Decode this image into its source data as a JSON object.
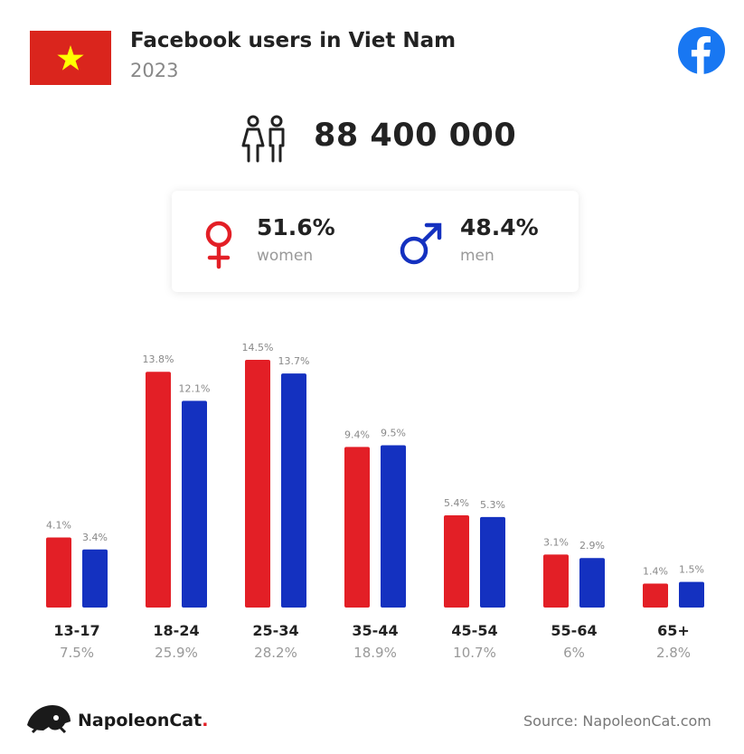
{
  "header": {
    "title": "Facebook users in Viet Nam",
    "year": "2023",
    "flag_colors": {
      "field": "#da251d",
      "star": "#ffff00"
    },
    "brand_icon": "facebook-icon",
    "brand_color": "#1877f2"
  },
  "summary": {
    "total_users": "88 400 000",
    "icon": "people-icon",
    "women": {
      "percent": "51.6%",
      "label": "women",
      "icon": "female-symbol-icon",
      "color": "#e31f26"
    },
    "men": {
      "percent": "48.4%",
      "label": "men",
      "icon": "male-symbol-icon",
      "color": "#1431c0"
    }
  },
  "chart_data": {
    "type": "bar",
    "categories": [
      "13-17",
      "18-24",
      "25-34",
      "35-44",
      "45-54",
      "55-64",
      "65+"
    ],
    "group_share_labels": [
      "7.5%",
      "25.9%",
      "28.2%",
      "18.9%",
      "10.7%",
      "6%",
      "2.8%"
    ],
    "series": [
      {
        "color": "#e31f26",
        "values": [
          4.1,
          13.8,
          14.5,
          9.4,
          5.4,
          3.1,
          1.4
        ],
        "labels": [
          "4.1%",
          "13.8%",
          "14.5%",
          "9.4%",
          "5.4%",
          "3.1%",
          "1.4%"
        ]
      },
      {
        "color": "#1431c0",
        "values": [
          3.4,
          12.1,
          13.7,
          9.5,
          5.3,
          2.9,
          1.5
        ],
        "labels": [
          "3.4%",
          "12.1%",
          "13.7%",
          "9.5%",
          "5.3%",
          "2.9%",
          "1.5%"
        ]
      }
    ],
    "ylim": [
      0,
      14.5
    ],
    "grid": false
  },
  "footer": {
    "brand_name": "NapoleonCat",
    "brand_dot": ".",
    "source": "Source: NapoleonCat.com"
  }
}
